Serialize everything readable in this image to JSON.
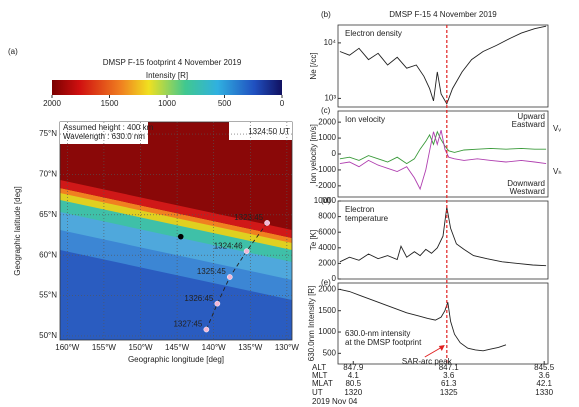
{
  "chart_data": [
    {
      "type": "map",
      "panel_label": "(a)",
      "title": "DMSP F-15   footprint  4 November 2019",
      "colorbar": {
        "label": "Intensity [R]",
        "lim": [
          2000,
          0
        ],
        "ticks": [
          2000,
          1500,
          1000,
          500,
          0
        ]
      },
      "annotations": [
        "Assumed height : 400 km",
        "Wavelength : 630.0 nm"
      ],
      "time_label": "1324:50 UT",
      "xlabel": "Geographic longitude [deg]",
      "ylabel": "Geographic latitude [deg]",
      "xlim": [
        -161,
        -129.3
      ],
      "ylim": [
        49.5,
        76.5
      ],
      "xticks": [
        {
          "value": -160,
          "label": "160°W"
        },
        {
          "value": -155,
          "label": "155°W"
        },
        {
          "value": -150,
          "label": "150°W"
        },
        {
          "value": -145,
          "label": "145°W"
        },
        {
          "value": -140,
          "label": "140°W"
        },
        {
          "value": -135,
          "label": "135°W"
        },
        {
          "value": -130,
          "label": "130°W"
        }
      ],
      "yticks": [
        {
          "value": 50,
          "label": "50°N"
        },
        {
          "value": 55,
          "label": "55°N"
        },
        {
          "value": 60,
          "label": "60°N"
        },
        {
          "value": 65,
          "label": "65°N"
        },
        {
          "value": 70,
          "label": "70°N"
        },
        {
          "value": 75,
          "label": "75°N"
        }
      ],
      "grid": true,
      "footprints": {
        "labels": [
          "1323:45",
          "1324:46",
          "1325:45",
          "1326:45",
          "1327:45"
        ],
        "lon": [
          -132.7,
          -135.5,
          -137.8,
          -139.5,
          -141
        ],
        "lat": [
          64,
          60.5,
          57.3,
          54,
          50.8
        ],
        "color": "#f2b6d6"
      },
      "marker": {
        "lon": -144.5,
        "lat": 62.3
      }
    },
    {
      "type": "line",
      "panel_label": "(b)",
      "title": "DMSP F-15  4 November 2019",
      "annotation": [
        "Electron density"
      ],
      "ylabel": "Ne [/cc]",
      "log_scale": true,
      "xlim": [
        1319.2,
        1330.2
      ],
      "ylim": [
        700,
        21000
      ],
      "yticks": [
        {
          "value": 1000,
          "label": "10³"
        },
        {
          "value": 10000,
          "label": "10⁴"
        }
      ],
      "x": [
        1319.3,
        1319.8,
        1320.3,
        1320.8,
        1321.3,
        1321.8,
        1322.3,
        1322.8,
        1323.3,
        1323.7,
        1324.0,
        1324.2,
        1324.4,
        1324.6,
        1324.9,
        1325.2,
        1325.7,
        1326.2,
        1326.8,
        1327.5,
        1328.2,
        1328.8,
        1329.5,
        1330.1
      ],
      "values": [
        7000,
        6000,
        8000,
        5000,
        6500,
        4000,
        5500,
        3500,
        4000,
        2500,
        1500,
        900,
        3000,
        1200,
        800,
        1500,
        3000,
        5000,
        7000,
        9000,
        12000,
        15000,
        18000,
        20000
      ],
      "color": "#222222"
    },
    {
      "type": "line",
      "panel_label": "(c)",
      "annotation": [
        "Ion velocity"
      ],
      "ylabel": "Ion velocity [m/s]",
      "xlim": [
        1319.2,
        1330.2
      ],
      "ylim": [
        -2700,
        2700
      ],
      "yticks": [
        -2000,
        -1000,
        0,
        1000,
        2000
      ],
      "x": [
        1319.3,
        1319.8,
        1320.3,
        1320.8,
        1321.3,
        1321.8,
        1322.3,
        1322.8,
        1323.2,
        1323.5,
        1323.8,
        1324.0,
        1324.2,
        1324.4,
        1324.6,
        1324.8,
        1325.0,
        1325.3,
        1325.8,
        1326.5,
        1327.2,
        1328,
        1328.8,
        1329.5,
        1330.1
      ],
      "series": [
        {
          "name": "Upward",
          "negative_name": "Downward",
          "symbol": "Vᵥ",
          "color": "#3a9a3a",
          "values": [
            -300,
            -200,
            -400,
            -100,
            -300,
            -500,
            -200,
            -600,
            -300,
            300,
            800,
            1200,
            600,
            1400,
            900,
            500,
            200,
            100,
            250,
            300,
            350,
            300,
            350,
            300,
            300
          ]
        },
        {
          "name": "Eastward",
          "negative_name": "Westward",
          "symbol": "Vₕ",
          "color": "#b040b0",
          "values": [
            -600,
            -500,
            -800,
            -400,
            -700,
            -900,
            -1100,
            -800,
            -1500,
            -2200,
            -1000,
            200,
            1400,
            600,
            1500,
            300,
            -200,
            -300,
            -400,
            -300,
            -400,
            -500,
            -400,
            -500,
            -600
          ]
        }
      ]
    },
    {
      "type": "line",
      "panel_label": "(d)",
      "annotation": [
        "Electron",
        "temperature"
      ],
      "ylabel": "Te [K]",
      "xlim": [
        1319.2,
        1330.2
      ],
      "ylim": [
        0,
        10000
      ],
      "yticks": [
        0,
        2000,
        4000,
        6000,
        8000,
        10000
      ],
      "x": [
        1319.3,
        1319.8,
        1320.3,
        1320.8,
        1321.3,
        1321.8,
        1322.3,
        1322.5,
        1322.8,
        1323.2,
        1323.5,
        1323.8,
        1324.1,
        1324.4,
        1324.7,
        1324.9,
        1325.1,
        1325.4,
        1325.8,
        1326.3,
        1327,
        1327.8,
        1328.6,
        1329.4,
        1330.1
      ],
      "values": [
        2200,
        2800,
        2400,
        3200,
        2600,
        3000,
        2500,
        4200,
        2800,
        3500,
        3000,
        3800,
        3300,
        4000,
        5500,
        9200,
        6500,
        4500,
        3800,
        3000,
        2600,
        2200,
        2000,
        1800,
        1700
      ],
      "color": "#222222"
    },
    {
      "type": "line",
      "panel_label": "(e)",
      "annotation": [
        "630.0-nm intensity",
        "at the DMSP footprint"
      ],
      "ylabel": "630.0nm Intensity [R]",
      "xlim": [
        1319.2,
        1330.2
      ],
      "ylim": [
        250,
        2150
      ],
      "yticks": [
        500,
        1000,
        1500,
        2000
      ],
      "xticks": [
        1320,
        1325,
        1330
      ],
      "x": [
        1319.3,
        1319.8,
        1320.4,
        1321,
        1321.6,
        1322.2,
        1322.8,
        1323.4,
        1323.9,
        1324.3,
        1324.6,
        1324.8,
        1324.95,
        1325.1,
        1325.3,
        1325.6,
        1326,
        1326.4,
        1326.8,
        1327.2,
        1327.6,
        1328
      ],
      "values": [
        2000,
        1950,
        1850,
        1750,
        1650,
        1550,
        1450,
        1380,
        1320,
        1280,
        1350,
        1500,
        1700,
        1250,
        950,
        750,
        620,
        580,
        560,
        600,
        640,
        700
      ],
      "color": "#222222",
      "event": {
        "text": "SAR-arc peak",
        "x": 1324.9,
        "color": "#e02020"
      },
      "x_rows": {
        "labels": [
          "ALT",
          "MLT",
          "MLAT"
        ],
        "values": [
          [
            847.9,
            847.1,
            845.5
          ],
          [
            4.1,
            3.6,
            3.6
          ],
          [
            80.5,
            61.3,
            42.1
          ]
        ]
      },
      "xtick_row_label": "UT",
      "date": "2019 Nov 04"
    }
  ]
}
